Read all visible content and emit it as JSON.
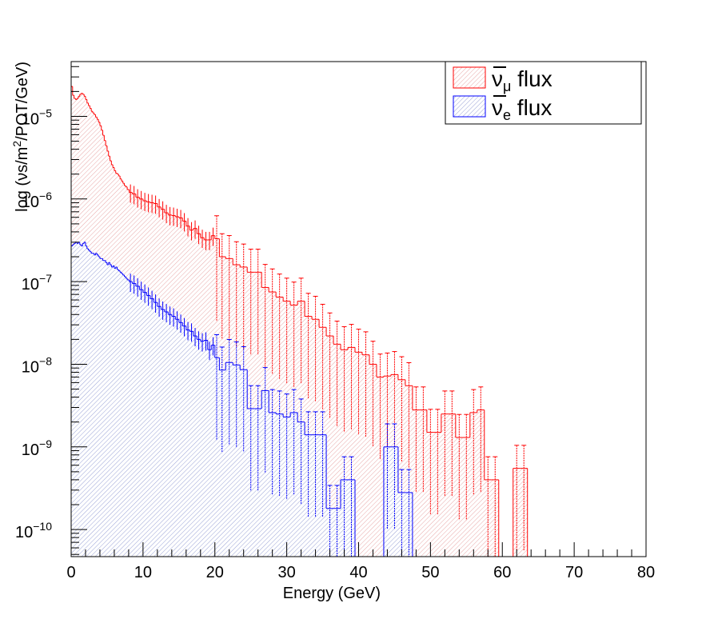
{
  "chart_data": {
    "type": "histogram",
    "xlabel": "Energy (GeV)",
    "ylabel": "log (νs/m²/POT/GeV)",
    "ylabel_parts": {
      "pre": "log (νs/m",
      "sup": "2",
      "post": "/POT/GeV)"
    },
    "xlim": [
      0,
      80
    ],
    "ylim": [
      4.7e-11,
      4.6e-05
    ],
    "yscale": "log",
    "x_ticks": [
      "0",
      "10",
      "20",
      "30",
      "40",
      "50",
      "60",
      "70",
      "80"
    ],
    "y_ticks": [
      {
        "base": "10",
        "exp": "−5"
      },
      {
        "base": "10",
        "exp": "−6"
      },
      {
        "base": "10",
        "exp": "−7"
      },
      {
        "base": "10",
        "exp": "−8"
      },
      {
        "base": "10",
        "exp": "−9"
      },
      {
        "base": "10",
        "exp": "−10"
      }
    ],
    "legend_position": "top-right",
    "series": [
      {
        "name": "ν̄μ flux",
        "legend": {
          "nu": "ν",
          "sub": "μ",
          "post": " flux"
        },
        "color": "#ff0000",
        "fill": "#f3d6d6",
        "points": [
          [
            0.1,
            2.3e-05
          ],
          [
            0.3,
            1.8e-05
          ],
          [
            0.5,
            1.65e-05
          ],
          [
            0.7,
            1.6e-05
          ],
          [
            0.9,
            1.65e-05
          ],
          [
            1.1,
            1.75e-05
          ],
          [
            1.3,
            1.85e-05
          ],
          [
            1.5,
            1.9e-05
          ],
          [
            1.7,
            1.85e-05
          ],
          [
            1.9,
            1.75e-05
          ],
          [
            2.1,
            1.6e-05
          ],
          [
            2.3,
            1.45e-05
          ],
          [
            2.5,
            1.35e-05
          ],
          [
            2.7,
            1.25e-05
          ],
          [
            2.9,
            1.15e-05
          ],
          [
            3.1,
            1.1e-05
          ],
          [
            3.3,
            1.05e-05
          ],
          [
            3.5,
            9.8e-06
          ],
          [
            3.7,
            9.2e-06
          ],
          [
            3.9,
            8.5e-06
          ],
          [
            4.1,
            7.7e-06
          ],
          [
            4.3,
            6.8e-06
          ],
          [
            4.5,
            5.9e-06
          ],
          [
            4.7,
            5.1e-06
          ],
          [
            4.9,
            4.4e-06
          ],
          [
            5.1,
            3.8e-06
          ],
          [
            5.3,
            3.3e-06
          ],
          [
            5.5,
            2.9e-06
          ],
          [
            5.7,
            2.6e-06
          ],
          [
            5.9,
            2.4e-06
          ],
          [
            6.1,
            2.2e-06
          ],
          [
            6.3,
            2.05e-06
          ],
          [
            6.5,
            2e-06
          ],
          [
            6.7,
            1.9e-06
          ],
          [
            6.9,
            1.75e-06
          ],
          [
            7.1,
            1.65e-06
          ],
          [
            7.3,
            1.55e-06
          ],
          [
            7.5,
            1.45e-06
          ],
          [
            7.7,
            1.4e-06
          ],
          [
            7.9,
            1.3e-06
          ],
          [
            8.25,
            1.2e-06
          ],
          [
            8.75,
            1.15e-06
          ],
          [
            9.25,
            1.05e-06
          ],
          [
            9.75,
            1e-06
          ],
          [
            10.25,
            9.5e-07
          ],
          [
            10.75,
            9.2e-07
          ],
          [
            11.25,
            9e-07
          ],
          [
            11.75,
            8.8e-07
          ],
          [
            12.25,
            8e-07
          ],
          [
            12.75,
            7.5e-07
          ],
          [
            13.25,
            6.8e-07
          ],
          [
            13.75,
            6.4e-07
          ],
          [
            14.25,
            6.3e-07
          ],
          [
            14.75,
            6.1e-07
          ],
          [
            15.25,
            5.9e-07
          ],
          [
            15.75,
            5.4e-07
          ],
          [
            16.25,
            4.7e-07
          ],
          [
            16.75,
            4.2e-07
          ],
          [
            17.25,
            4.4e-07
          ],
          [
            17.75,
            3.8e-07
          ],
          [
            18.25,
            3.4e-07
          ],
          [
            18.75,
            3.2e-07
          ],
          [
            19.25,
            3.2e-07
          ],
          [
            19.75,
            3.6e-07
          ],
          [
            20.25,
            3.3e-07
          ],
          [
            21,
            2e-07
          ],
          [
            22,
            1.9e-07
          ],
          [
            23,
            1.6e-07
          ],
          [
            24,
            1.5e-07
          ],
          [
            25,
            1.3e-07
          ],
          [
            26,
            1.3e-07
          ],
          [
            27,
            8.5e-08
          ],
          [
            28,
            7.5e-08
          ],
          [
            29,
            6.5e-08
          ],
          [
            30,
            5.8e-08
          ],
          [
            31,
            5.2e-08
          ],
          [
            32,
            5.8e-08
          ],
          [
            33,
            3.8e-08
          ],
          [
            34,
            3.5e-08
          ],
          [
            35,
            2.8e-08
          ],
          [
            36,
            2.2e-08
          ],
          [
            37,
            1.75e-08
          ],
          [
            38,
            1.5e-08
          ],
          [
            39,
            1.6e-08
          ],
          [
            40,
            1.4e-08
          ],
          [
            41,
            1.3e-08
          ],
          [
            42,
            1e-08
          ],
          [
            43,
            7e-09
          ],
          [
            44,
            7.2e-09
          ],
          [
            45,
            7.5e-09
          ],
          [
            46,
            6.5e-09
          ],
          [
            47,
            5.5e-09
          ],
          [
            48,
            2.8e-09
          ],
          [
            49,
            2.8e-09
          ],
          [
            50,
            1.5e-09
          ],
          [
            51,
            1.5e-09
          ],
          [
            52,
            2.5e-09
          ],
          [
            53,
            2.5e-09
          ],
          [
            54,
            1.3e-09
          ],
          [
            55,
            1.3e-09
          ],
          [
            56,
            2.6e-09
          ],
          [
            57,
            2.8e-09
          ],
          [
            58,
            4e-10
          ],
          [
            59,
            4e-10
          ],
          [
            60,
            0
          ],
          [
            61,
            0
          ],
          [
            62,
            5.5e-10
          ],
          [
            63,
            5.5e-10
          ],
          [
            64,
            0
          ],
          [
            65,
            0
          ]
        ]
      },
      {
        "name": "ν̄e flux",
        "legend": {
          "nu": "ν",
          "sub": "e",
          "post": " flux"
        },
        "color": "#0000ff",
        "fill": "#cfd3e8",
        "points": [
          [
            0.1,
            2.7e-07
          ],
          [
            0.3,
            2.8e-07
          ],
          [
            0.5,
            2.9e-07
          ],
          [
            0.7,
            3e-07
          ],
          [
            0.9,
            2.9e-07
          ],
          [
            1.1,
            3e-07
          ],
          [
            1.3,
            2.8e-07
          ],
          [
            1.5,
            2.7e-07
          ],
          [
            1.7,
            2.9e-07
          ],
          [
            1.9,
            3e-07
          ],
          [
            2.1,
            2.7e-07
          ],
          [
            2.3,
            2.5e-07
          ],
          [
            2.5,
            2.4e-07
          ],
          [
            2.7,
            2.3e-07
          ],
          [
            2.9,
            2.2e-07
          ],
          [
            3.1,
            2.2e-07
          ],
          [
            3.3,
            2.1e-07
          ],
          [
            3.5,
            2.2e-07
          ],
          [
            3.7,
            2.1e-07
          ],
          [
            3.9,
            2e-07
          ],
          [
            4.1,
            1.9e-07
          ],
          [
            4.3,
            1.9e-07
          ],
          [
            4.5,
            1.8e-07
          ],
          [
            4.7,
            1.8e-07
          ],
          [
            4.9,
            1.7e-07
          ],
          [
            5.1,
            1.6e-07
          ],
          [
            5.3,
            1.7e-07
          ],
          [
            5.5,
            1.6e-07
          ],
          [
            5.7,
            1.5e-07
          ],
          [
            5.9,
            1.55e-07
          ],
          [
            6.1,
            1.45e-07
          ],
          [
            6.3,
            1.5e-07
          ],
          [
            6.5,
            1.4e-07
          ],
          [
            6.7,
            1.35e-07
          ],
          [
            6.9,
            1.3e-07
          ],
          [
            7.1,
            1.25e-07
          ],
          [
            7.3,
            1.2e-07
          ],
          [
            7.5,
            1.15e-07
          ],
          [
            7.7,
            1.1e-07
          ],
          [
            7.9,
            1.05e-07
          ],
          [
            8.25,
            1e-07
          ],
          [
            8.75,
            9.5e-08
          ],
          [
            9.25,
            8.8e-08
          ],
          [
            9.75,
            8e-08
          ],
          [
            10.25,
            7.4e-08
          ],
          [
            10.75,
            6.8e-08
          ],
          [
            11.25,
            6.2e-08
          ],
          [
            11.75,
            5.6e-08
          ],
          [
            12.25,
            5e-08
          ],
          [
            12.75,
            4.6e-08
          ],
          [
            13.25,
            4.3e-08
          ],
          [
            13.75,
            4e-08
          ],
          [
            14.25,
            3.8e-08
          ],
          [
            14.75,
            3.5e-08
          ],
          [
            15.25,
            3.2e-08
          ],
          [
            15.75,
            2.9e-08
          ],
          [
            16.25,
            2.6e-08
          ],
          [
            16.75,
            2.5e-08
          ],
          [
            17.25,
            2.2e-08
          ],
          [
            17.75,
            2e-08
          ],
          [
            18.25,
            1.9e-08
          ],
          [
            18.75,
            1.95e-08
          ],
          [
            19.25,
            1.5e-08
          ],
          [
            19.75,
            1.7e-08
          ],
          [
            20.25,
            1.2e-08
          ],
          [
            21,
            8.5e-09
          ],
          [
            22,
            1.05e-08
          ],
          [
            23,
            9.8e-09
          ],
          [
            24,
            8.6e-09
          ],
          [
            25,
            2.9e-09
          ],
          [
            26,
            2.9e-09
          ],
          [
            27,
            4.8e-09
          ],
          [
            28,
            2.6e-09
          ],
          [
            29,
            2.5e-09
          ],
          [
            30,
            2.3e-09
          ],
          [
            31,
            2.6e-09
          ],
          [
            32,
            2e-09
          ],
          [
            33,
            1.4e-09
          ],
          [
            34,
            1.4e-09
          ],
          [
            35,
            1.4e-09
          ],
          [
            36,
            1.8e-10
          ],
          [
            37,
            1.8e-10
          ],
          [
            38,
            4e-10
          ],
          [
            39,
            4e-10
          ],
          [
            40,
            0
          ],
          [
            41,
            0
          ],
          [
            42,
            0
          ],
          [
            43,
            0
          ],
          [
            44,
            1e-09
          ],
          [
            45,
            1e-09
          ],
          [
            46,
            2.8e-10
          ],
          [
            47,
            2.8e-10
          ],
          [
            48,
            0
          ],
          [
            49,
            0
          ]
        ]
      }
    ]
  }
}
